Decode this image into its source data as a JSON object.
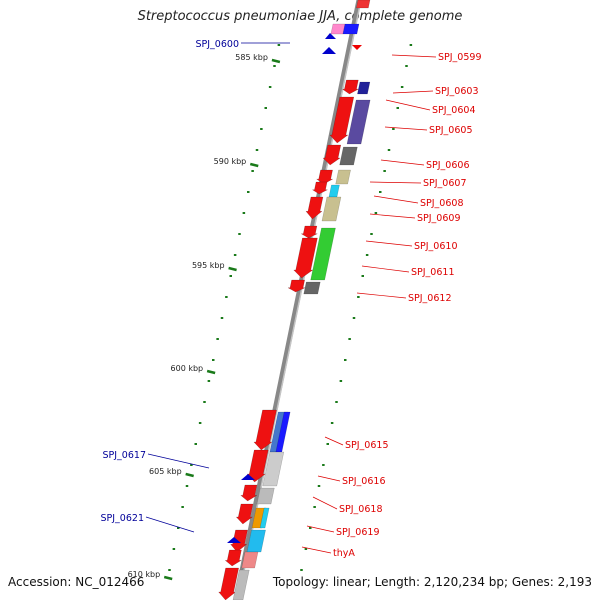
{
  "title": "Streptococcus pneumoniae JJA, complete genome",
  "footer": {
    "accession": "Accession: NC_012466",
    "topology": "Topology: linear; Length: 2,120,234 bp; Genes: 2,193"
  },
  "scale": {
    "unit": "kbp",
    "labels": [
      "585 kbp",
      "590 kbp",
      "595 kbp",
      "600 kbp",
      "605 kbp",
      "610 kbp"
    ]
  },
  "colors": {
    "forward_label": "#dd0000",
    "reverse_label": "#000099",
    "tick": "#1a7a1a",
    "backbone": "#888888"
  },
  "genes_right": [
    "SPJ_0599",
    "SPJ_0603",
    "SPJ_0604",
    "SPJ_0605",
    "SPJ_0606",
    "SPJ_0607",
    "SPJ_0608",
    "SPJ_0609",
    "SPJ_0610",
    "SPJ_0611",
    "SPJ_0612",
    "SPJ_0615",
    "SPJ_0616",
    "SPJ_0618",
    "SPJ_0619",
    "thyA"
  ],
  "genes_left": [
    "SPJ_0600",
    "SPJ_0617",
    "SPJ_0621"
  ]
}
